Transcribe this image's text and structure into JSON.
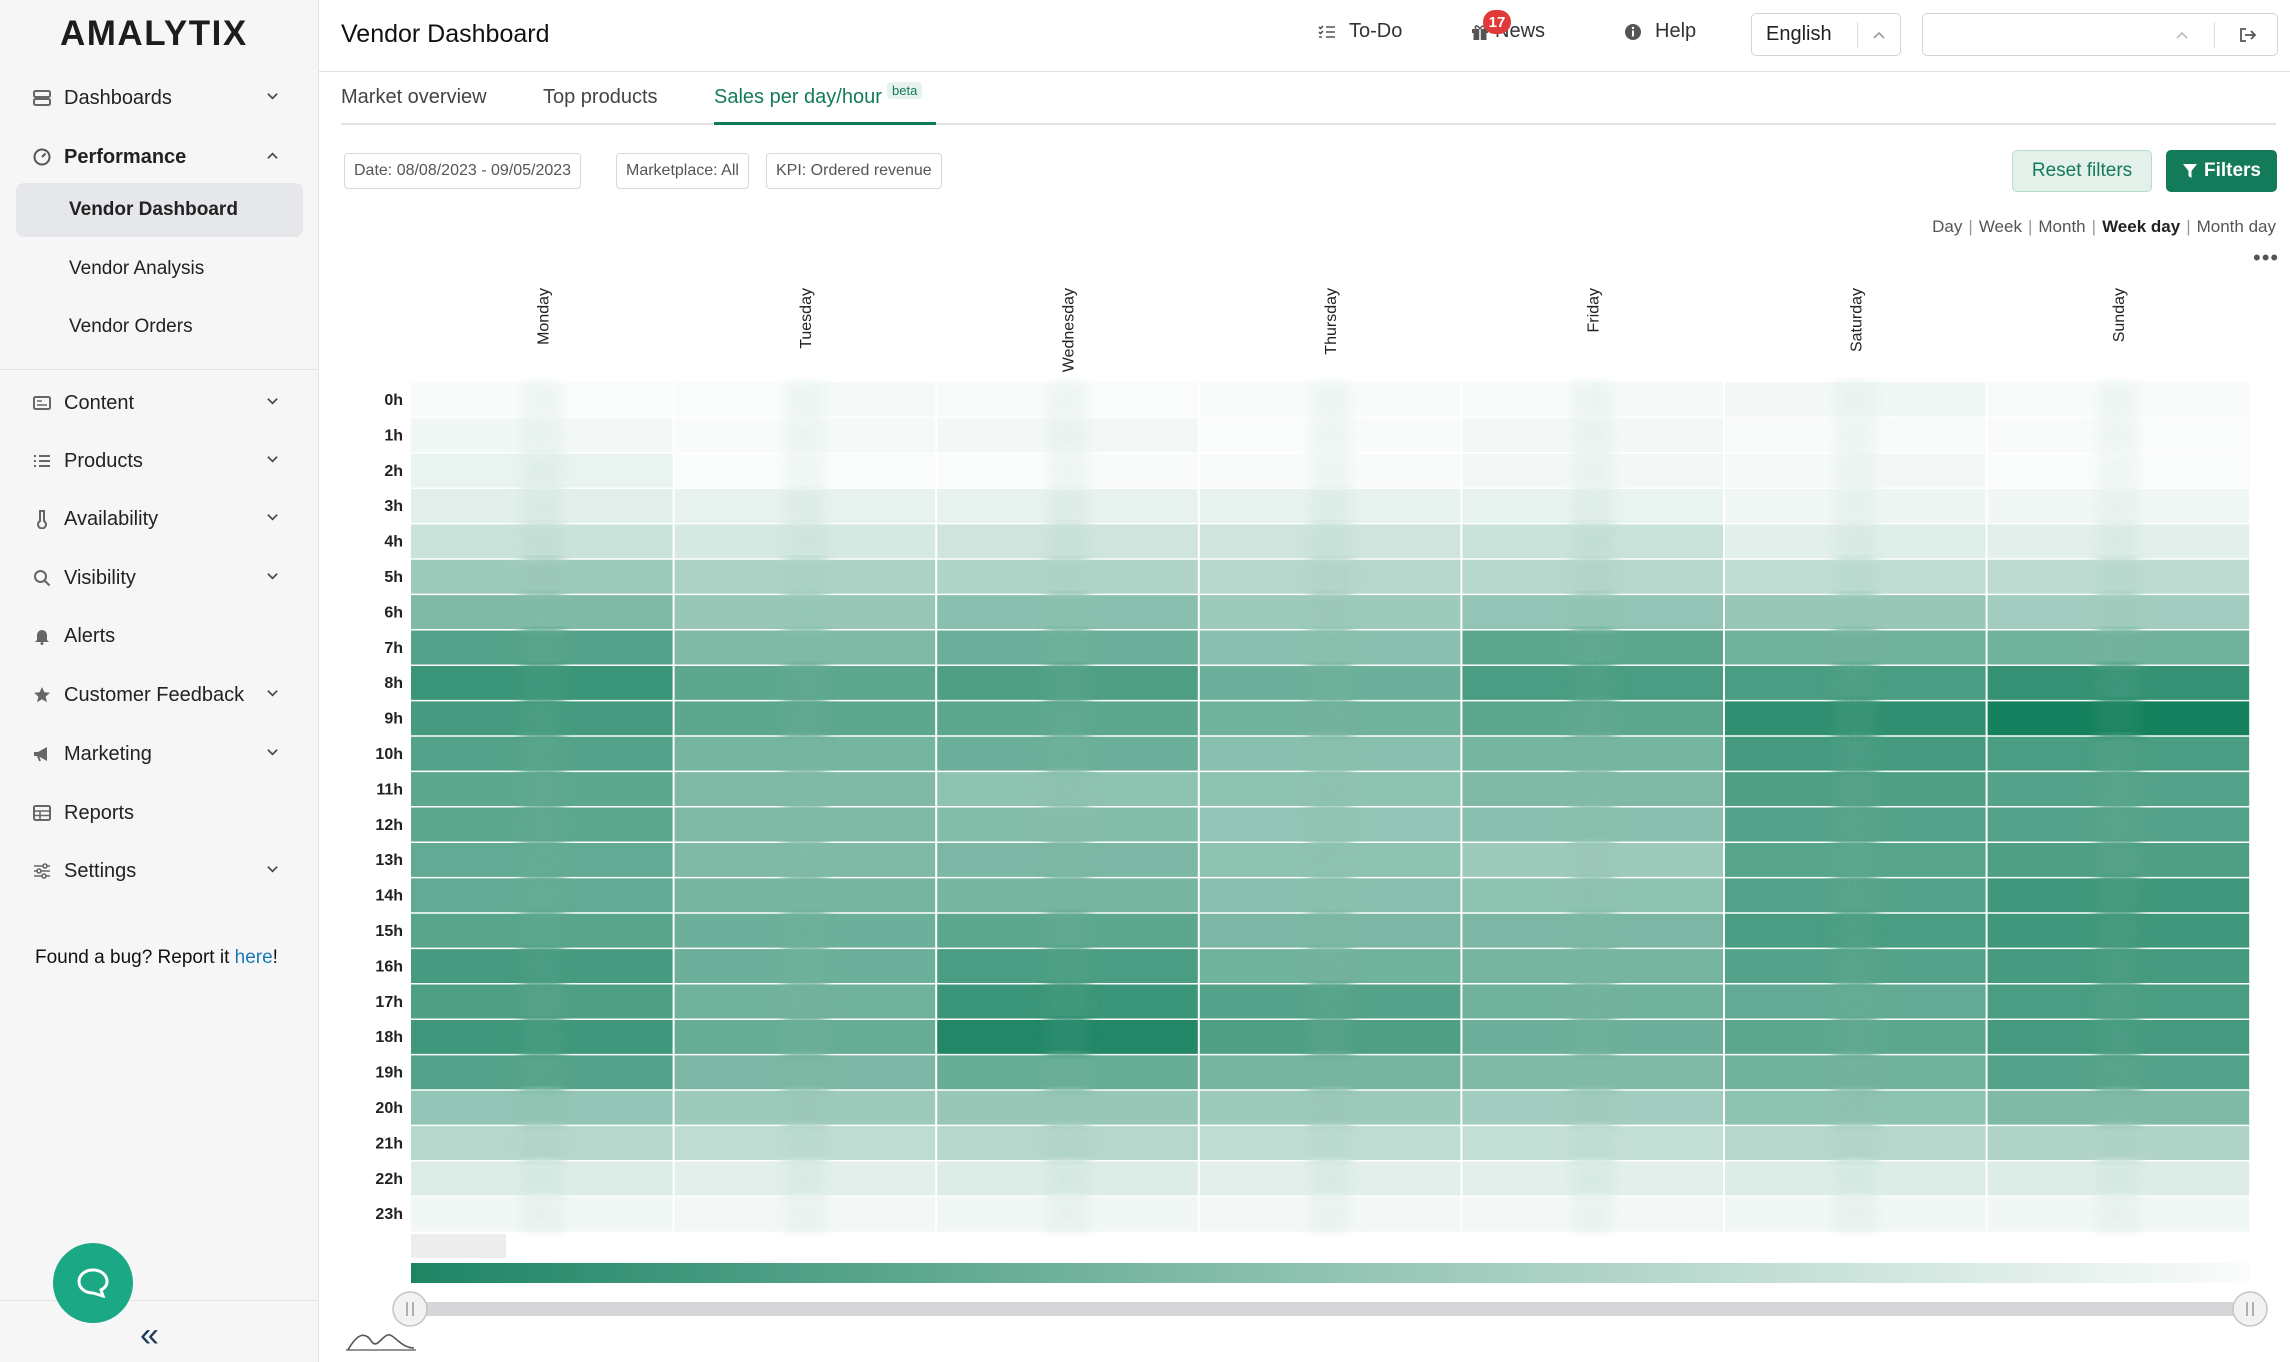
{
  "app": {
    "logo": "AMALYTIX",
    "page_title": "Vendor Dashboard"
  },
  "colors": {
    "accent": "#137a5a",
    "badge": "#e03a3a",
    "sidebar_bg": "#f6f6f7",
    "chat": "#1ba885"
  },
  "sidebar": {
    "dashboards": "Dashboards",
    "performance": "Performance",
    "performance_items": [
      "Vendor Dashboard",
      "Vendor Analysis",
      "Vendor Orders"
    ],
    "content": "Content",
    "products": "Products",
    "availability": "Availability",
    "visibility": "Visibility",
    "alerts": "Alerts",
    "customer_feedback": "Customer Feedback",
    "marketing": "Marketing",
    "reports": "Reports",
    "settings": "Settings",
    "bug_text": "Found a bug? Report it ",
    "bug_link": "here",
    "bug_suffix": "!"
  },
  "topbar": {
    "todo": "To-Do",
    "news": "News",
    "news_count": "17",
    "help": "Help",
    "language": "English",
    "search_value": ""
  },
  "tabs": {
    "market_overview": "Market overview",
    "top_products": "Top products",
    "sales_per_day_hour": "Sales per day/hour",
    "beta": "beta"
  },
  "filters": {
    "date": "Date: 08/08/2023 - 09/05/2023",
    "marketplace": "Marketplace: All",
    "kpi": "KPI: Ordered revenue",
    "reset_label": "Reset filters",
    "filters_label": "Filters"
  },
  "period": {
    "day": "Day",
    "week": "Week",
    "month": "Month",
    "week_day": "Week day",
    "month_day": "Month day",
    "selected": "Week day"
  },
  "chart_data": {
    "type": "heatmap",
    "x": [
      "Monday",
      "Tuesday",
      "Wednesday",
      "Thursday",
      "Friday",
      "Saturday",
      "Sunday"
    ],
    "y": [
      "0h",
      "1h",
      "2h",
      "3h",
      "4h",
      "5h",
      "6h",
      "7h",
      "8h",
      "9h",
      "10h",
      "11h",
      "12h",
      "13h",
      "14h",
      "15h",
      "16h",
      "17h",
      "18h",
      "19h",
      "20h",
      "21h",
      "22h",
      "23h"
    ],
    "scale": [
      0,
      1
    ],
    "values": [
      [
        0.03,
        0.02,
        0.02,
        0.04,
        0.03,
        0.02,
        0.03,
        0.03,
        0.03,
        0.04,
        0.05,
        0.06,
        0.03,
        0.03
      ],
      [
        0.06,
        0.05,
        0.03,
        0.04,
        0.05,
        0.05,
        0.02,
        0.03,
        0.05,
        0.05,
        0.03,
        0.03,
        0.03,
        0.02
      ],
      [
        0.09,
        0.09,
        0.02,
        0.02,
        0.02,
        0.03,
        0.03,
        0.03,
        0.05,
        0.05,
        0.04,
        0.05,
        0.02,
        0.02
      ],
      [
        0.12,
        0.12,
        0.1,
        0.1,
        0.1,
        0.1,
        0.1,
        0.1,
        0.1,
        0.09,
        0.06,
        0.07,
        0.06,
        0.06
      ],
      [
        0.22,
        0.22,
        0.17,
        0.17,
        0.2,
        0.2,
        0.2,
        0.2,
        0.22,
        0.22,
        0.12,
        0.13,
        0.12,
        0.12
      ],
      [
        0.4,
        0.4,
        0.34,
        0.34,
        0.32,
        0.32,
        0.3,
        0.3,
        0.3,
        0.3,
        0.26,
        0.26,
        0.27,
        0.27
      ],
      [
        0.52,
        0.52,
        0.42,
        0.42,
        0.48,
        0.48,
        0.4,
        0.4,
        0.44,
        0.44,
        0.42,
        0.42,
        0.38,
        0.38
      ],
      [
        0.7,
        0.7,
        0.52,
        0.52,
        0.6,
        0.6,
        0.48,
        0.48,
        0.66,
        0.66,
        0.58,
        0.58,
        0.58,
        0.58
      ],
      [
        0.8,
        0.8,
        0.66,
        0.66,
        0.72,
        0.72,
        0.6,
        0.6,
        0.74,
        0.74,
        0.74,
        0.74,
        0.82,
        0.82
      ],
      [
        0.76,
        0.76,
        0.66,
        0.66,
        0.66,
        0.66,
        0.58,
        0.58,
        0.66,
        0.66,
        0.84,
        0.84,
        0.95,
        0.95
      ],
      [
        0.7,
        0.7,
        0.56,
        0.56,
        0.6,
        0.6,
        0.48,
        0.48,
        0.56,
        0.56,
        0.76,
        0.76,
        0.74,
        0.74
      ],
      [
        0.66,
        0.66,
        0.52,
        0.52,
        0.46,
        0.46,
        0.46,
        0.46,
        0.52,
        0.52,
        0.72,
        0.72,
        0.7,
        0.7
      ],
      [
        0.66,
        0.66,
        0.52,
        0.52,
        0.5,
        0.5,
        0.44,
        0.44,
        0.48,
        0.48,
        0.7,
        0.7,
        0.7,
        0.7
      ],
      [
        0.64,
        0.64,
        0.52,
        0.52,
        0.54,
        0.54,
        0.46,
        0.46,
        0.4,
        0.4,
        0.68,
        0.68,
        0.72,
        0.72
      ],
      [
        0.64,
        0.64,
        0.56,
        0.56,
        0.56,
        0.56,
        0.48,
        0.48,
        0.46,
        0.46,
        0.7,
        0.7,
        0.78,
        0.78
      ],
      [
        0.68,
        0.68,
        0.6,
        0.6,
        0.66,
        0.66,
        0.54,
        0.54,
        0.54,
        0.54,
        0.74,
        0.74,
        0.78,
        0.78
      ],
      [
        0.76,
        0.76,
        0.6,
        0.6,
        0.74,
        0.74,
        0.58,
        0.58,
        0.56,
        0.56,
        0.7,
        0.7,
        0.76,
        0.76
      ],
      [
        0.72,
        0.72,
        0.58,
        0.58,
        0.8,
        0.8,
        0.7,
        0.7,
        0.58,
        0.58,
        0.64,
        0.64,
        0.74,
        0.74
      ],
      [
        0.78,
        0.78,
        0.62,
        0.62,
        0.9,
        0.9,
        0.72,
        0.72,
        0.6,
        0.6,
        0.66,
        0.66,
        0.76,
        0.76
      ],
      [
        0.7,
        0.7,
        0.54,
        0.54,
        0.62,
        0.62,
        0.56,
        0.56,
        0.52,
        0.52,
        0.58,
        0.58,
        0.7,
        0.7
      ],
      [
        0.44,
        0.44,
        0.4,
        0.4,
        0.42,
        0.42,
        0.4,
        0.4,
        0.38,
        0.38,
        0.46,
        0.46,
        0.52,
        0.52
      ],
      [
        0.3,
        0.3,
        0.26,
        0.26,
        0.3,
        0.3,
        0.26,
        0.26,
        0.24,
        0.24,
        0.3,
        0.3,
        0.32,
        0.32
      ],
      [
        0.14,
        0.14,
        0.12,
        0.12,
        0.14,
        0.14,
        0.12,
        0.12,
        0.12,
        0.12,
        0.14,
        0.14,
        0.14,
        0.14
      ],
      [
        0.06,
        0.06,
        0.05,
        0.05,
        0.06,
        0.06,
        0.05,
        0.05,
        0.05,
        0.05,
        0.06,
        0.06,
        0.06,
        0.06
      ]
    ]
  }
}
